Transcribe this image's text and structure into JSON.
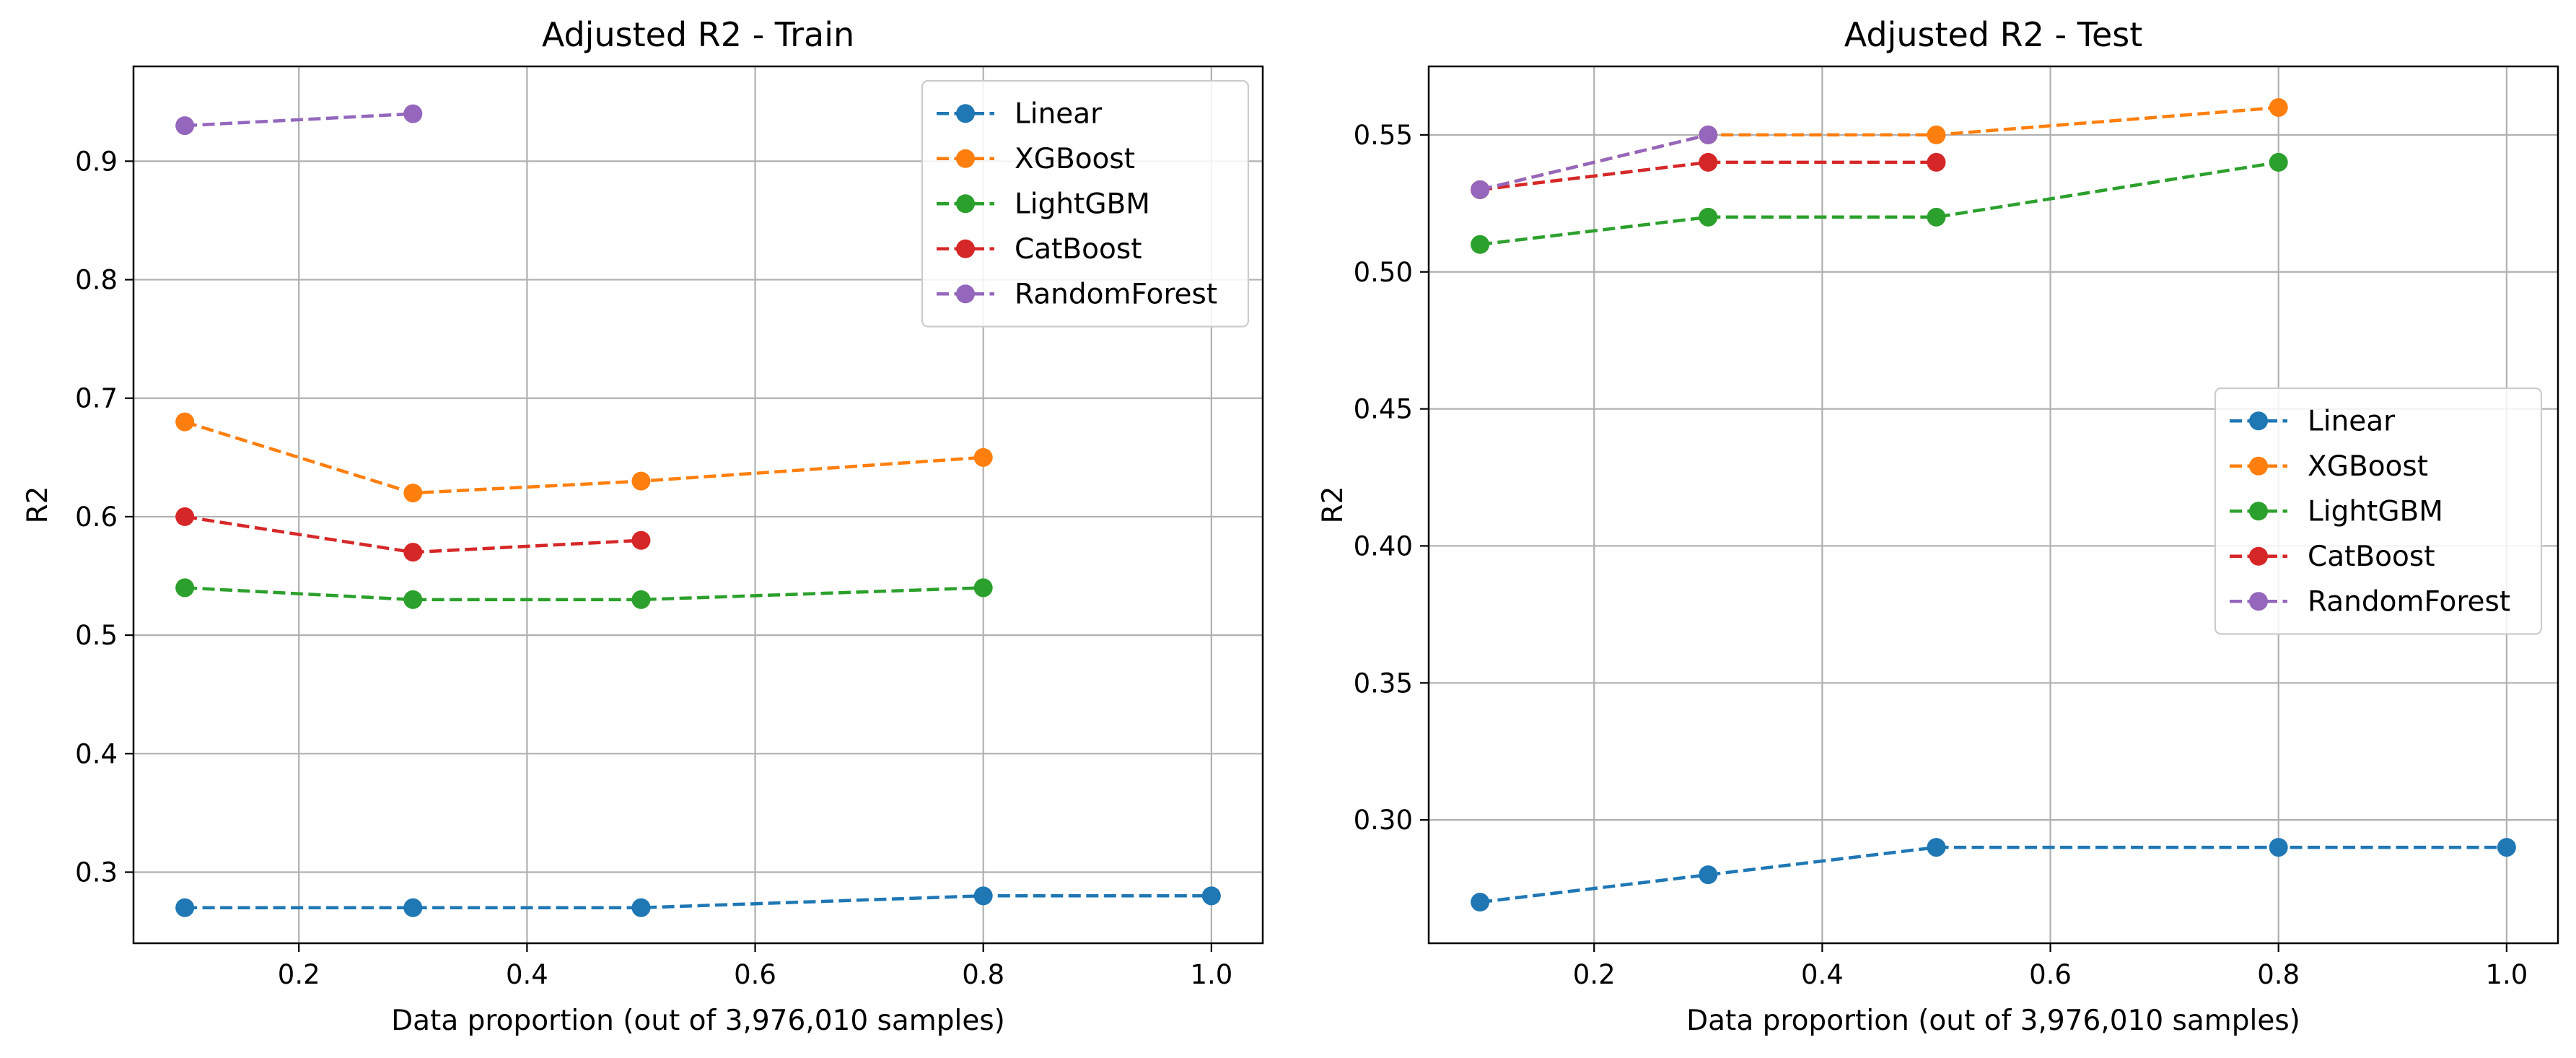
{
  "chart_data": [
    {
      "type": "line",
      "title": "Adjusted R2 - Train",
      "xlabel": "Data proportion (out of 3,976,010 samples)",
      "ylabel": "R2",
      "xlim": [
        0.055,
        1.045
      ],
      "ylim": [
        0.24,
        0.98
      ],
      "xticks": [
        0.2,
        0.4,
        0.6,
        0.8,
        1.0
      ],
      "xtick_labels": [
        "0.2",
        "0.4",
        "0.6",
        "0.8",
        "1.0"
      ],
      "yticks": [
        0.3,
        0.4,
        0.5,
        0.6,
        0.7,
        0.8,
        0.9
      ],
      "ytick_labels": [
        "0.3",
        "0.4",
        "0.5",
        "0.6",
        "0.7",
        "0.8",
        "0.9"
      ],
      "grid": true,
      "legend": "top-right",
      "series": [
        {
          "name": "Linear",
          "color": "#1f77b4",
          "x": [
            0.1,
            0.3,
            0.5,
            0.8,
            1.0
          ],
          "y": [
            0.27,
            0.27,
            0.27,
            0.28,
            0.28
          ]
        },
        {
          "name": "XGBoost",
          "color": "#ff7f0e",
          "x": [
            0.1,
            0.3,
            0.5,
            0.8
          ],
          "y": [
            0.68,
            0.62,
            0.63,
            0.65
          ]
        },
        {
          "name": "LightGBM",
          "color": "#2ca02c",
          "x": [
            0.1,
            0.3,
            0.5,
            0.8
          ],
          "y": [
            0.54,
            0.53,
            0.53,
            0.54
          ]
        },
        {
          "name": "CatBoost",
          "color": "#d62728",
          "x": [
            0.1,
            0.3,
            0.5
          ],
          "y": [
            0.6,
            0.57,
            0.58
          ]
        },
        {
          "name": "RandomForest",
          "color": "#9467bd",
          "x": [
            0.1,
            0.3
          ],
          "y": [
            0.93,
            0.94
          ]
        }
      ]
    },
    {
      "type": "line",
      "title": "Adjusted R2 - Test",
      "xlabel": "Data proportion (out of 3,976,010 samples)",
      "ylabel": "R2",
      "xlim": [
        0.055,
        1.045
      ],
      "ylim": [
        0.255,
        0.575
      ],
      "xticks": [
        0.2,
        0.4,
        0.6,
        0.8,
        1.0
      ],
      "xtick_labels": [
        "0.2",
        "0.4",
        "0.6",
        "0.8",
        "1.0"
      ],
      "yticks": [
        0.3,
        0.35,
        0.4,
        0.45,
        0.5,
        0.55
      ],
      "ytick_labels": [
        "0.30",
        "0.35",
        "0.40",
        "0.45",
        "0.50",
        "0.55"
      ],
      "grid": true,
      "legend": "center-right",
      "series": [
        {
          "name": "Linear",
          "color": "#1f77b4",
          "x": [
            0.1,
            0.3,
            0.5,
            0.8,
            1.0
          ],
          "y": [
            0.27,
            0.28,
            0.29,
            0.29,
            0.29
          ]
        },
        {
          "name": "XGBoost",
          "color": "#ff7f0e",
          "x": [
            0.1,
            0.3,
            0.5,
            0.8
          ],
          "y": [
            0.53,
            0.55,
            0.55,
            0.56
          ]
        },
        {
          "name": "LightGBM",
          "color": "#2ca02c",
          "x": [
            0.1,
            0.3,
            0.5,
            0.8
          ],
          "y": [
            0.51,
            0.52,
            0.52,
            0.54
          ]
        },
        {
          "name": "CatBoost",
          "color": "#d62728",
          "x": [
            0.1,
            0.3,
            0.5
          ],
          "y": [
            0.53,
            0.54,
            0.54
          ]
        },
        {
          "name": "RandomForest",
          "color": "#9467bd",
          "x": [
            0.1,
            0.3
          ],
          "y": [
            0.53,
            0.55
          ]
        }
      ]
    }
  ]
}
